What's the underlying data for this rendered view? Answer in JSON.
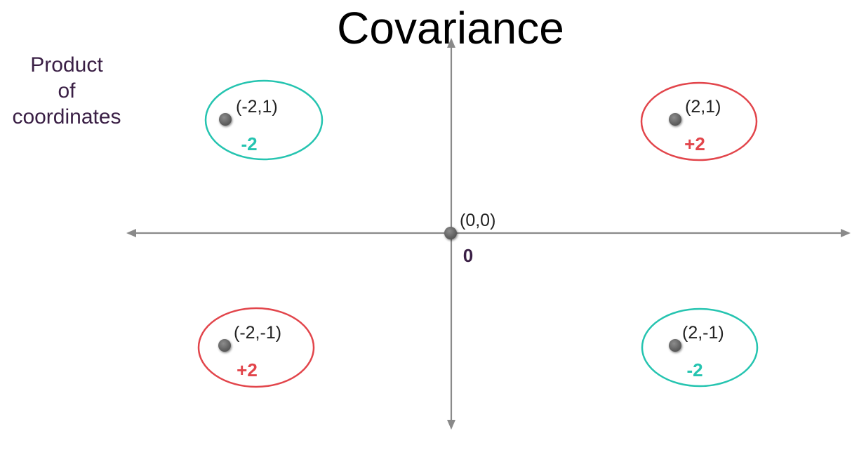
{
  "title": "Covariance",
  "side_label": {
    "line1": "Product",
    "line2": "of",
    "line3": "coordinates"
  },
  "colors": {
    "positive": "#e2454b",
    "negative": "#25c4b0",
    "axis": "#8a8a8a",
    "point": "#6b6b6b",
    "origin_product": "#3a1f45"
  },
  "points": [
    {
      "id": "point-neg2-pos1",
      "coord_label": "(-2,1)",
      "product": "-2",
      "sign": "negative"
    },
    {
      "id": "point-pos2-pos1",
      "coord_label": "(2,1)",
      "product": "+2",
      "sign": "positive"
    },
    {
      "id": "point-neg2-neg1",
      "coord_label": "(-2,-1)",
      "product": "+2",
      "sign": "positive"
    },
    {
      "id": "point-pos2-neg1",
      "coord_label": "(2,-1)",
      "product": "-2",
      "sign": "negative"
    }
  ],
  "origin": {
    "coord_label": "(0,0)",
    "product": "0"
  }
}
